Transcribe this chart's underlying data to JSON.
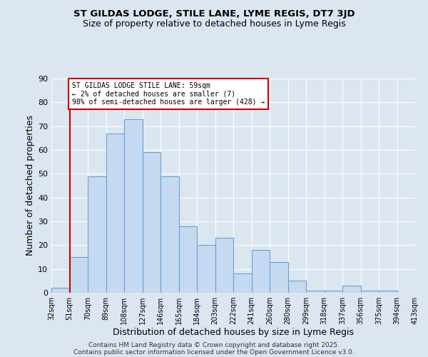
{
  "title": "ST GILDAS LODGE, STILE LANE, LYME REGIS, DT7 3JD",
  "subtitle": "Size of property relative to detached houses in Lyme Regis",
  "xlabel": "Distribution of detached houses by size in Lyme Regis",
  "ylabel": "Number of detached properties",
  "bar_values": [
    2,
    15,
    49,
    67,
    73,
    59,
    49,
    28,
    20,
    23,
    8,
    18,
    13,
    5,
    1,
    1,
    3,
    1,
    1,
    0
  ],
  "categories": [
    "32sqm",
    "51sqm",
    "70sqm",
    "89sqm",
    "108sqm",
    "127sqm",
    "146sqm",
    "165sqm",
    "184sqm",
    "203sqm",
    "222sqm",
    "241sqm",
    "260sqm",
    "280sqm",
    "299sqm",
    "318sqm",
    "337sqm",
    "356sqm",
    "375sqm",
    "394sqm",
    "413sqm"
  ],
  "bar_color": "#c5d9f0",
  "bar_edge_color": "#5b9bd5",
  "background_color": "#dce6f1",
  "grid_color": "#ffffff",
  "ylim": [
    0,
    90
  ],
  "yticks": [
    0,
    10,
    20,
    30,
    40,
    50,
    60,
    70,
    80,
    90
  ],
  "vline_x": 1.0,
  "vline_color": "#cc0000",
  "annotation_text": "ST GILDAS LODGE STILE LANE: 59sqm\n← 2% of detached houses are smaller (7)\n98% of semi-detached houses are larger (428) →",
  "annotation_box_color": "#cc0000",
  "footer_line1": "Contains HM Land Registry data © Crown copyright and database right 2025.",
  "footer_line2": "Contains public sector information licensed under the Open Government Licence v3.0."
}
